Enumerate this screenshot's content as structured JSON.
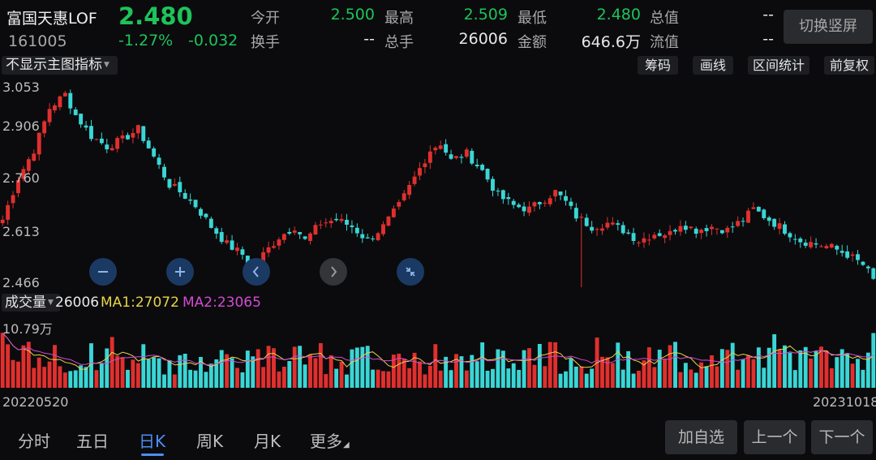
{
  "quote": {
    "name": "富国天惠LOF",
    "code": "161005",
    "price": "2.480",
    "change_pct": "-1.27%",
    "change": "-0.032",
    "fields": [
      {
        "label": "今开",
        "value": "2.500"
      },
      {
        "label": "最高",
        "value": "2.509"
      },
      {
        "label": "最低",
        "value": "2.480"
      },
      {
        "label": "总值",
        "value": "--"
      },
      {
        "label": "换手",
        "value": "--"
      },
      {
        "label": "总手",
        "value": "26006"
      },
      {
        "label": "金额",
        "value": "646.6万"
      },
      {
        "label": "流值",
        "value": "--"
      }
    ],
    "switch_label": "切换竖屏"
  },
  "toolbar": {
    "indicator_label": "不显示主图指标",
    "buttons": [
      "筹码",
      "画线",
      "区间统计",
      "前复权"
    ]
  },
  "main_axis": {
    "ticks": [
      "3.053",
      "2.906",
      "2.760",
      "2.613",
      "2.466"
    ]
  },
  "volume": {
    "select_label": "成交量",
    "current": "26006",
    "ma1_label": "MA1:27072",
    "ma2_label": "MA2:23065",
    "max_label": "10.79万"
  },
  "dates": {
    "start": "20220520",
    "end": "20231018"
  },
  "period_tabs": [
    "分时",
    "五日",
    "日K",
    "周K",
    "月K",
    "更多"
  ],
  "active_tab": "日K",
  "nav_buttons": [
    "加自选",
    "上一个",
    "下一个"
  ],
  "colors": {
    "up": "#e0302e",
    "down": "#3ad6d6",
    "price_green": "#1ec35a",
    "ma1": "#e8d34a",
    "ma2": "#d24bd2",
    "active_tab": "#4a8ff5"
  },
  "chart_data": {
    "type": "candlestick",
    "price_range": [
      2.466,
      3.053
    ],
    "volume_max_wan": 10.79,
    "date_range": [
      "20220520",
      "20231018"
    ],
    "close_anchors": [
      [
        0,
        2.66
      ],
      [
        3,
        2.78
      ],
      [
        6,
        2.86
      ],
      [
        9,
        2.98
      ],
      [
        12,
        3.02
      ],
      [
        14,
        2.96
      ],
      [
        17,
        2.9
      ],
      [
        20,
        2.87
      ],
      [
        23,
        2.89
      ],
      [
        26,
        2.92
      ],
      [
        29,
        2.84
      ],
      [
        32,
        2.76
      ],
      [
        34,
        2.74
      ],
      [
        37,
        2.7
      ],
      [
        40,
        2.64
      ],
      [
        43,
        2.59
      ],
      [
        46,
        2.56
      ],
      [
        48,
        2.5
      ],
      [
        50,
        2.56
      ],
      [
        53,
        2.61
      ],
      [
        56,
        2.64
      ],
      [
        58,
        2.6
      ],
      [
        61,
        2.65
      ],
      [
        64,
        2.66
      ],
      [
        67,
        2.64
      ],
      [
        70,
        2.6
      ],
      [
        73,
        2.64
      ],
      [
        76,
        2.7
      ],
      [
        79,
        2.78
      ],
      [
        82,
        2.86
      ],
      [
        84,
        2.88
      ],
      [
        86,
        2.83
      ],
      [
        89,
        2.85
      ],
      [
        92,
        2.8
      ],
      [
        95,
        2.73
      ],
      [
        98,
        2.7
      ],
      [
        101,
        2.69
      ],
      [
        104,
        2.72
      ],
      [
        106,
        2.74
      ],
      [
        108,
        2.71
      ],
      [
        110,
        2.67
      ],
      [
        113,
        2.64
      ],
      [
        116,
        2.65
      ],
      [
        119,
        2.63
      ],
      [
        122,
        2.6
      ],
      [
        125,
        2.62
      ],
      [
        128,
        2.62
      ],
      [
        130,
        2.65
      ],
      [
        133,
        2.63
      ],
      [
        136,
        2.64
      ],
      [
        139,
        2.63
      ],
      [
        142,
        2.66
      ],
      [
        144,
        2.69
      ],
      [
        147,
        2.66
      ],
      [
        150,
        2.63
      ],
      [
        153,
        2.6
      ],
      [
        156,
        2.59
      ],
      [
        159,
        2.58
      ],
      [
        162,
        2.56
      ],
      [
        165,
        2.53
      ],
      [
        167,
        2.49
      ]
    ]
  }
}
